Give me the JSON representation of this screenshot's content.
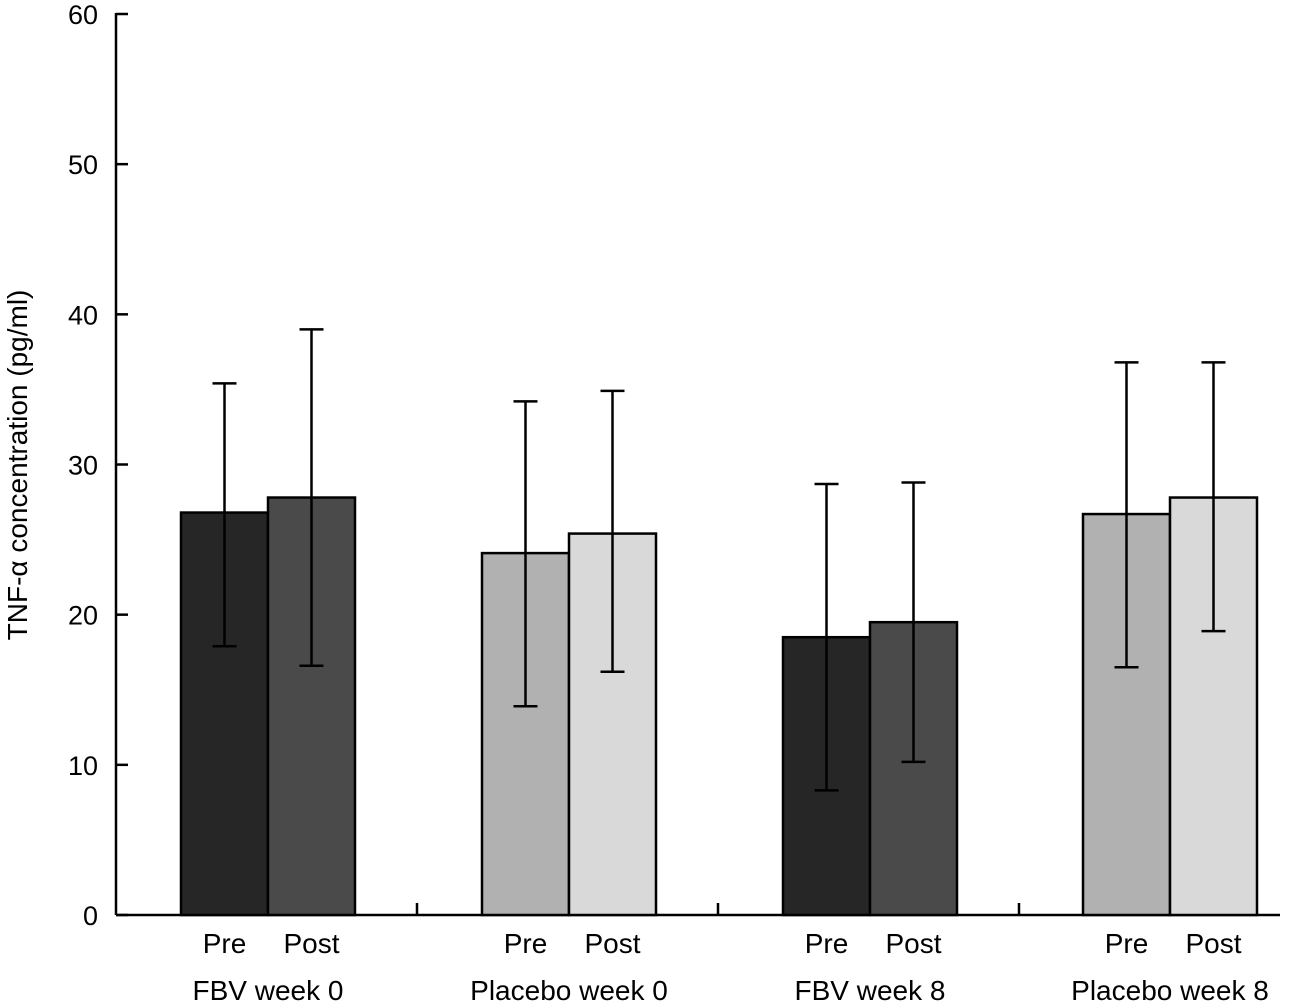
{
  "chart_data": {
    "type": "bar",
    "title": "",
    "ylabel": "TNF-α concentration (pg/ml)",
    "xlabel": "",
    "ylim": [
      0,
      60
    ],
    "yticks": [
      0,
      10,
      20,
      30,
      40,
      50,
      60
    ],
    "groups": [
      {
        "label": "FBV week 0",
        "bars": [
          {
            "label": "Pre",
            "value": 26.8,
            "err_low": 17.9,
            "err_high": 35.4,
            "color": "#262626"
          },
          {
            "label": "Post",
            "value": 27.8,
            "err_low": 16.6,
            "err_high": 39.0,
            "color": "#4a4a4a"
          }
        ]
      },
      {
        "label": "Placebo week 0",
        "bars": [
          {
            "label": "Pre",
            "value": 24.1,
            "err_low": 13.9,
            "err_high": 34.2,
            "color": "#b1b1b1"
          },
          {
            "label": "Post",
            "value": 25.4,
            "err_low": 16.2,
            "err_high": 34.9,
            "color": "#d9d9d9"
          }
        ]
      },
      {
        "label": "FBV week 8",
        "bars": [
          {
            "label": "Pre",
            "value": 18.5,
            "err_low": 8.3,
            "err_high": 28.7,
            "color": "#262626"
          },
          {
            "label": "Post",
            "value": 19.5,
            "err_low": 10.2,
            "err_high": 28.8,
            "color": "#4a4a4a"
          }
        ]
      },
      {
        "label": "Placebo week 8",
        "bars": [
          {
            "label": "Pre",
            "value": 26.7,
            "err_low": 16.5,
            "err_high": 36.8,
            "color": "#b1b1b1"
          },
          {
            "label": "Post",
            "value": 27.8,
            "err_low": 18.9,
            "err_high": 36.8,
            "color": "#d9d9d9"
          }
        ]
      }
    ]
  }
}
